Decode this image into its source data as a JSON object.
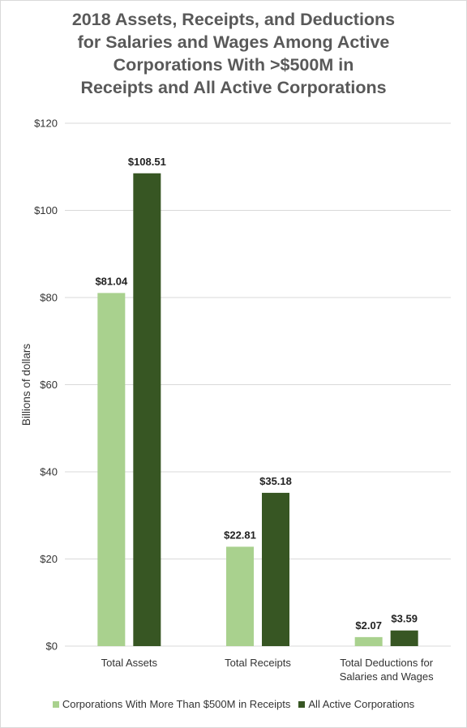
{
  "chart_data": {
    "type": "bar",
    "title_lines": [
      "2018 Assets, Receipts, and Deductions",
      "for Salaries and Wages Among Active",
      "Corporations With >$500M in",
      "Receipts and All Active Corporations"
    ],
    "ylabel": "Billions of dollars",
    "ylim": [
      0,
      120
    ],
    "yticks": [
      0,
      20,
      40,
      60,
      80,
      100,
      120
    ],
    "ytick_labels": [
      "$0",
      "$20",
      "$40",
      "$60",
      "$80",
      "$100",
      "$120"
    ],
    "grid": true,
    "categories": [
      [
        "Total Assets"
      ],
      [
        "Total Receipts"
      ],
      [
        "Total Deductions for",
        "Salaries and Wages"
      ]
    ],
    "series": [
      {
        "name": "Corporations With More Than $500M in Receipts",
        "color": "#a9d18e",
        "values": [
          81.04,
          22.81,
          2.07
        ],
        "labels": [
          "$81.04",
          "$22.81",
          "$2.07"
        ]
      },
      {
        "name": "All Active Corporations",
        "color": "#375623",
        "values": [
          108.51,
          35.18,
          3.59
        ],
        "labels": [
          "$108.51",
          "$35.18",
          "$3.59"
        ]
      }
    ],
    "legend_position": "bottom"
  }
}
